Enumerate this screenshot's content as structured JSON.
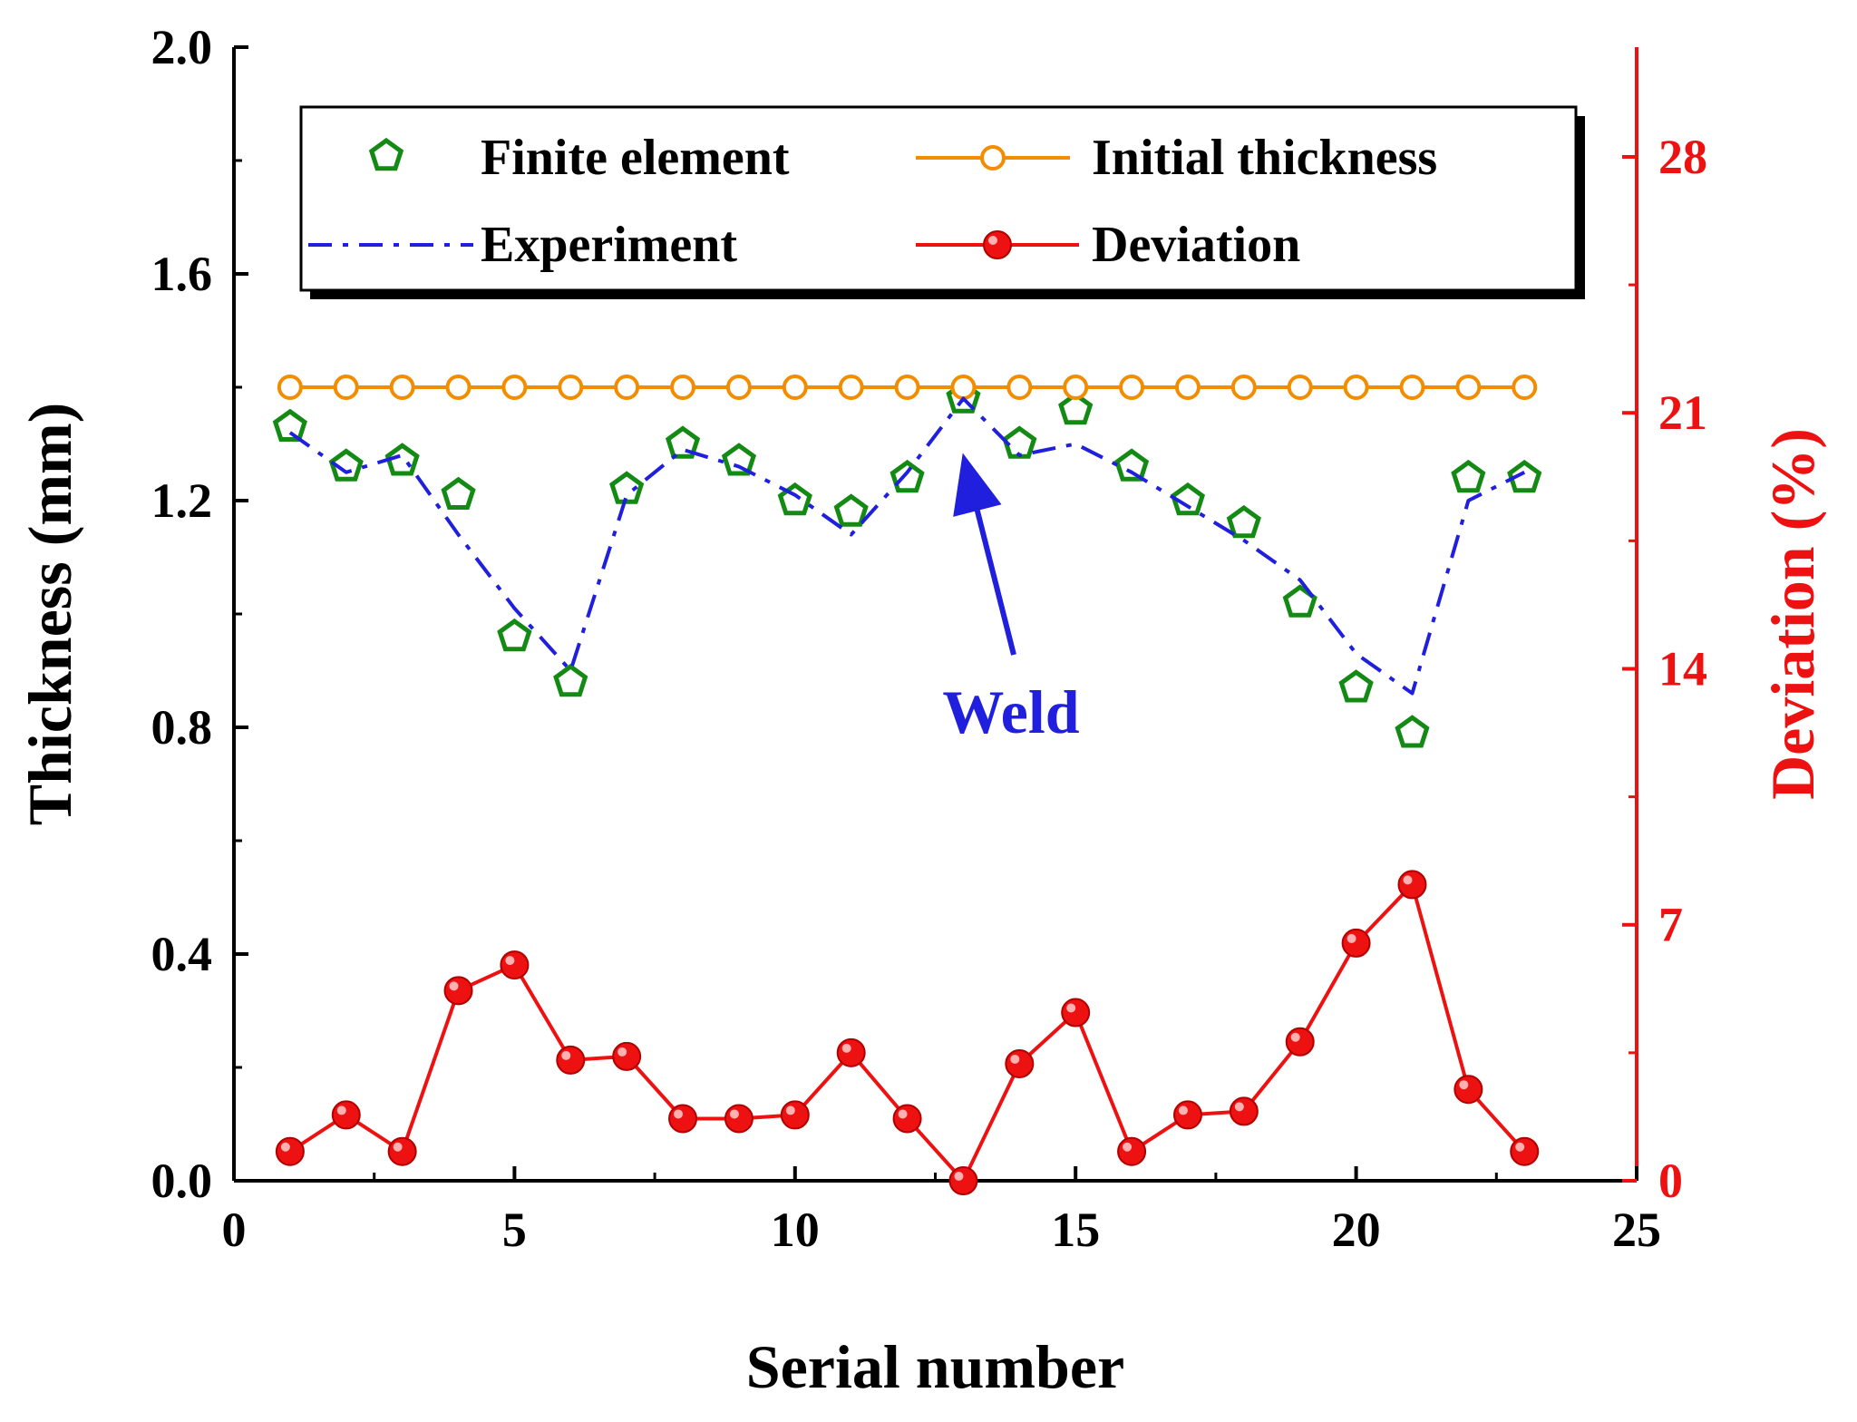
{
  "chart_data": {
    "type": "line",
    "xlabel": "Serial number",
    "ylabel_left": "Thickness (mm)",
    "ylabel_right": "Deviation (%)",
    "xlim": [
      0,
      25
    ],
    "ylim_left": [
      0.0,
      2.0
    ],
    "ylim_right": [
      0,
      31
    ],
    "x_ticks": [
      0,
      5,
      10,
      15,
      20,
      25
    ],
    "x_tick_labels": [
      "0",
      "5",
      "10",
      "15",
      "20",
      "25"
    ],
    "y_left_ticks": [
      0.0,
      0.4,
      0.8,
      1.2,
      1.6,
      2.0
    ],
    "y_left_tick_labels": [
      "0.0",
      "0.4",
      "0.8",
      "1.2",
      "1.6",
      "2.0"
    ],
    "y_right_ticks": [
      0,
      7,
      14,
      21,
      28
    ],
    "y_right_tick_labels": [
      "0",
      "7",
      "14",
      "21",
      "28"
    ],
    "x": [
      1,
      2,
      3,
      4,
      5,
      6,
      7,
      8,
      9,
      10,
      11,
      12,
      13,
      14,
      15,
      16,
      17,
      18,
      19,
      20,
      21,
      22,
      23
    ],
    "series": [
      {
        "name": "Finite element",
        "axis": "left",
        "style": "markers",
        "color": "#138a13",
        "marker": "pentagon-open",
        "values": [
          1.33,
          1.26,
          1.27,
          1.21,
          0.96,
          0.88,
          1.22,
          1.3,
          1.27,
          1.2,
          1.18,
          1.24,
          1.38,
          1.3,
          1.36,
          1.26,
          1.2,
          1.16,
          1.02,
          0.87,
          0.79,
          1.24,
          1.24
        ]
      },
      {
        "name": "Initial thickness",
        "axis": "left",
        "style": "line-markers",
        "color": "#f28c00",
        "marker": "circle-open",
        "values": [
          1.4,
          1.4,
          1.4,
          1.4,
          1.4,
          1.4,
          1.4,
          1.4,
          1.4,
          1.4,
          1.4,
          1.4,
          1.4,
          1.4,
          1.4,
          1.4,
          1.4,
          1.4,
          1.4,
          1.4,
          1.4,
          1.4,
          1.4
        ]
      },
      {
        "name": "Experiment",
        "axis": "left",
        "style": "dash-dot",
        "color": "#1f1fdd",
        "marker": "none",
        "values": [
          1.32,
          1.25,
          1.28,
          1.14,
          1.01,
          0.9,
          1.21,
          1.29,
          1.26,
          1.21,
          1.14,
          1.25,
          1.38,
          1.28,
          1.3,
          1.25,
          1.19,
          1.13,
          1.06,
          0.93,
          0.86,
          1.2,
          1.25
        ]
      },
      {
        "name": "Deviation",
        "axis": "right",
        "style": "line-markers",
        "color": "#ee1111",
        "marker": "circle-filled",
        "values": [
          0.8,
          1.8,
          0.8,
          5.2,
          5.9,
          3.3,
          3.4,
          1.7,
          1.7,
          1.8,
          3.5,
          1.7,
          0.0,
          3.2,
          4.6,
          0.8,
          1.8,
          1.9,
          3.8,
          6.5,
          8.1,
          2.5,
          0.8
        ]
      }
    ],
    "annotations": [
      {
        "text": "Weld",
        "color": "#1f1fdd",
        "arrow_to_x": 13,
        "arrow_to_y": 1.28
      }
    ],
    "legend": {
      "placement": "top",
      "entries": [
        "Finite element",
        "Initial thickness",
        "Experiment",
        "Deviation"
      ]
    },
    "colors": {
      "axis": "#000000",
      "right_axis": "#ee1111",
      "legend_border": "#000000"
    }
  }
}
